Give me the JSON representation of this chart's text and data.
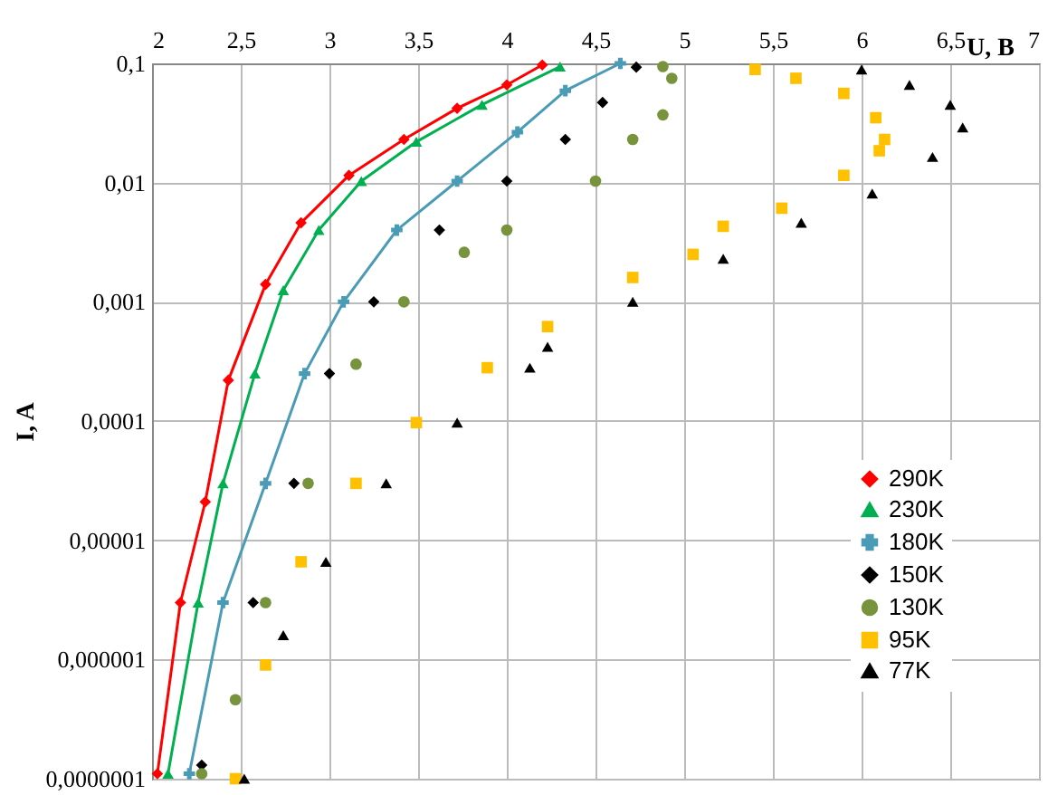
{
  "chart_data": {
    "type": "line",
    "xlabel": "U, B",
    "ylabel": "I, A",
    "log": "y",
    "grid": true,
    "legend": "bottom right",
    "xlim": [
      2,
      7
    ],
    "xticks": [
      2,
      {
        "value": 2.5,
        "label": "2,5"
      },
      3,
      {
        "value": 3.5,
        "label": "3,5"
      },
      4,
      {
        "value": 4.5,
        "label": "4,5"
      },
      5,
      {
        "value": 5.5,
        "label": "5,5"
      },
      6,
      {
        "value": 6.5,
        "label": "6,5"
      },
      7
    ],
    "ylim": [
      1e-07,
      0.1
    ],
    "yticks": [
      {
        "value": 1e-07,
        "label": "0,0000001"
      },
      {
        "value": 1e-06,
        "label": "0,000001"
      },
      {
        "value": 1e-05,
        "label": "0,00001"
      },
      {
        "value": 0.0001,
        "label": "0,0001"
      },
      {
        "value": 0.001,
        "label": "0,001"
      },
      {
        "value": 0.01,
        "label": "0,01"
      },
      {
        "value": 0.1,
        "label": "0,1"
      }
    ],
    "series": [
      {
        "name": "290K",
        "marker": "diamond",
        "color": "#ff0000",
        "x": [
          2.03,
          2.16,
          2.3,
          2.43,
          2.64,
          2.84,
          3.11,
          3.42,
          3.72,
          4.0,
          4.2
        ],
        "values": [
          1.1e-07,
          3e-06,
          2.1e-05,
          0.00022,
          0.0014,
          0.0046,
          0.0115,
          0.023,
          0.042,
          0.066,
          0.097
        ]
      },
      {
        "name": "230K",
        "marker": "triangle",
        "color": "#00b050",
        "x": [
          2.09,
          2.26,
          2.4,
          2.58,
          2.74,
          2.94,
          3.18,
          3.49,
          3.86,
          4.3
        ],
        "values": [
          1.1e-07,
          3e-06,
          3e-05,
          0.00025,
          0.00125,
          0.004,
          0.0103,
          0.022,
          0.045,
          0.094
        ]
      },
      {
        "name": "180K",
        "marker": "cross",
        "color": "#4a9bb5",
        "x": [
          2.21,
          2.4,
          2.64,
          2.86,
          3.08,
          3.38,
          3.72,
          4.06,
          4.33,
          4.64
        ],
        "values": [
          1.1e-07,
          3e-06,
          3e-05,
          0.00025,
          0.001,
          0.004,
          0.0103,
          0.0265,
          0.059,
          0.1
        ]
      },
      {
        "name": "150K",
        "type": "scatter",
        "marker": "diamond",
        "color": "#000000",
        "x": [
          2.28,
          2.57,
          2.8,
          3.0,
          3.25,
          3.62,
          4.0,
          4.33,
          4.54,
          4.73
        ],
        "values": [
          1.3e-07,
          3e-06,
          3e-05,
          0.00025,
          0.001,
          0.004,
          0.0103,
          0.023,
          0.047,
          0.093
        ]
      },
      {
        "name": "130K",
        "type": "scatter",
        "marker": "circle",
        "color": "#77933c",
        "x": [
          2.28,
          2.47,
          2.64,
          2.88,
          3.15,
          3.42,
          3.76,
          4.0,
          4.5,
          4.71,
          4.88,
          4.93,
          4.88
        ],
        "values": [
          1.1e-07,
          4.6e-07,
          3e-06,
          3e-05,
          0.0003,
          0.001,
          0.0026,
          0.004,
          0.0103,
          0.023,
          0.037,
          0.075,
          0.094
        ]
      },
      {
        "name": "95K",
        "type": "scatter",
        "marker": "square",
        "color": "#ffc000",
        "x": [
          2.47,
          2.64,
          2.84,
          3.15,
          3.49,
          3.89,
          4.23,
          4.71,
          5.05,
          5.22,
          5.55,
          5.9,
          6.1,
          6.13,
          6.08,
          5.9,
          5.63,
          5.4
        ],
        "values": [
          1e-07,
          9e-07,
          6.6e-06,
          3e-05,
          9.7e-05,
          0.00028,
          0.00062,
          0.0016,
          0.0025,
          0.0043,
          0.0061,
          0.0115,
          0.0185,
          0.023,
          0.035,
          0.056,
          0.075,
          0.089
        ]
      },
      {
        "name": "77K",
        "type": "scatter",
        "marker": "triangle",
        "color": "#000000",
        "x": [
          2.52,
          2.74,
          2.98,
          3.32,
          3.72,
          4.13,
          4.23,
          4.71,
          5.22,
          5.66,
          6.06,
          6.4,
          6.57,
          6.5,
          6.27,
          6.0
        ],
        "values": [
          1e-07,
          1.6e-06,
          6.6e-06,
          3e-05,
          9.7e-05,
          0.00028,
          0.00042,
          0.001,
          0.0023,
          0.0046,
          0.0081,
          0.0164,
          0.029,
          0.045,
          0.066,
          0.089
        ]
      }
    ]
  }
}
